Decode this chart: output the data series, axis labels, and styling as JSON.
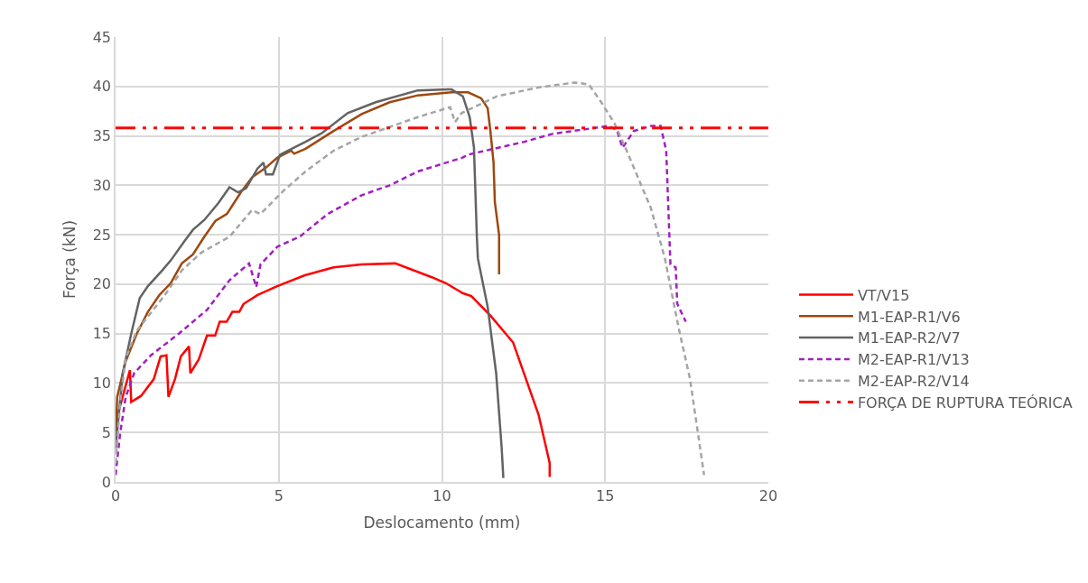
{
  "chart_data": {
    "type": "line",
    "xlabel": "Deslocamento (mm)",
    "ylabel": "Força (kN)",
    "xlim": [
      0,
      20
    ],
    "xticks": [
      0,
      5,
      10,
      15,
      20
    ],
    "ylim": [
      0,
      45
    ],
    "yticks": [
      0,
      5,
      10,
      15,
      20,
      25,
      30,
      35,
      40,
      45
    ],
    "grid": true,
    "legend": "right",
    "marker": "none",
    "series": [
      {
        "name": "VT/V15",
        "color": "#ff0000",
        "line_style": "solid",
        "x": [
          0,
          0.44,
          0.48,
          0.78,
          1.17,
          1.38,
          1.56,
          1.62,
          1.82,
          2.0,
          2.25,
          2.29,
          2.55,
          2.8,
          3.05,
          3.19,
          3.4,
          3.58,
          3.79,
          3.92,
          4.35,
          4.95,
          5.8,
          6.68,
          7.54,
          8.57,
          9.69,
          10.12,
          10.63,
          10.9,
          11.49,
          12.18,
          12.96,
          13.3,
          13.3
        ],
        "values": [
          6,
          11.3,
          8.1,
          8.7,
          10.4,
          12.7,
          12.8,
          8.6,
          10.4,
          12.7,
          13.7,
          11.0,
          12.4,
          14.8,
          14.8,
          16.2,
          16.2,
          17.2,
          17.2,
          18.0,
          18.9,
          19.8,
          20.9,
          21.7,
          22.0,
          22.1,
          20.7,
          20.1,
          19.1,
          18.8,
          16.8,
          14.1,
          6.8,
          1.9,
          0.5
        ]
      },
      {
        "name": "M1-EAP-R1/V6",
        "color": "#9e480e",
        "line_style": "solid",
        "x": [
          0,
          0.05,
          0.31,
          0.65,
          0.99,
          1.34,
          1.69,
          2.03,
          2.37,
          2.72,
          3.06,
          3.41,
          3.84,
          4.18,
          4.61,
          4.96,
          5.38,
          5.47,
          5.82,
          6.68,
          7.54,
          8.4,
          9.26,
          10.29,
          10.8,
          11.2,
          11.4,
          11.49,
          11.58,
          11.62,
          11.75,
          11.75
        ],
        "values": [
          4.3,
          8.6,
          12.2,
          15.0,
          17.2,
          18.9,
          20.1,
          22.1,
          23.0,
          24.8,
          26.4,
          27.1,
          29.3,
          30.8,
          31.8,
          32.8,
          33.5,
          33.2,
          33.7,
          35.5,
          37.2,
          38.4,
          39.1,
          39.4,
          39.4,
          38.8,
          37.8,
          35.3,
          32.3,
          28.3,
          25.0,
          21.0
        ]
      },
      {
        "name": "M1-EAP-R2/V7",
        "color": "#636363",
        "line_style": "solid",
        "x": [
          0,
          0.22,
          0.48,
          0.74,
          0.99,
          1.43,
          1.69,
          2.12,
          2.37,
          2.72,
          3.15,
          3.49,
          3.75,
          4.0,
          4.35,
          4.53,
          4.61,
          4.82,
          5.04,
          5.82,
          6.33,
          7.11,
          7.97,
          9.26,
          10.2,
          10.29,
          10.64,
          10.85,
          10.98,
          11.07,
          11.1,
          11.4,
          11.66,
          11.83,
          11.88
        ],
        "values": [
          3.4,
          11.0,
          15.0,
          18.6,
          19.8,
          21.4,
          22.4,
          24.4,
          25.5,
          26.5,
          28.2,
          29.8,
          29.3,
          29.7,
          31.7,
          32.3,
          31.1,
          31.1,
          33.1,
          34.4,
          35.3,
          37.3,
          38.4,
          39.6,
          39.7,
          39.7,
          39.0,
          36.9,
          33.8,
          24.7,
          22.6,
          17.7,
          11.0,
          3.4,
          0.4
        ]
      },
      {
        "name": "M2-EAP-R1/V13",
        "color": "#a020c0",
        "line_style": "dashed",
        "x": [
          0,
          0.14,
          0.31,
          0.57,
          1.08,
          1.94,
          2.8,
          3.49,
          4.09,
          4.31,
          4.44,
          4.96,
          5.64,
          6.5,
          7.54,
          8.4,
          9.26,
          10.63,
          10.8,
          12.52,
          13.38,
          14.24,
          15.1,
          15.36,
          15.53,
          15.88,
          16.4,
          16.7,
          16.87,
          17.0,
          17.16,
          17.21,
          17.47
        ],
        "values": [
          0.7,
          4.9,
          8.6,
          11.0,
          12.8,
          15.0,
          17.4,
          20.4,
          22.1,
          19.7,
          22.0,
          23.8,
          24.8,
          27.1,
          29.0,
          30.0,
          31.4,
          32.8,
          33.1,
          34.4,
          35.2,
          35.6,
          36.0,
          35.6,
          33.8,
          35.5,
          36.0,
          36.0,
          33.5,
          22.0,
          21.7,
          18.0,
          16.2
        ]
      },
      {
        "name": "M2-EAP-R2/V14",
        "color": "#a5a5a5",
        "line_style": "dashed",
        "x": [
          0,
          0.14,
          0.31,
          0.65,
          1.08,
          1.51,
          2.03,
          2.63,
          3.49,
          4.18,
          4.44,
          5.13,
          5.82,
          6.68,
          7.54,
          8.4,
          9.26,
          10.25,
          10.4,
          10.6,
          11.68,
          12.97,
          14.07,
          14.5,
          14.88,
          15.28,
          15.62,
          16.4,
          16.83,
          17.25,
          17.6,
          18.03
        ],
        "values": [
          1.9,
          8.0,
          12.5,
          15.3,
          17.1,
          18.9,
          21.4,
          23.2,
          24.8,
          27.5,
          27.1,
          29.4,
          31.4,
          33.5,
          34.9,
          35.9,
          36.9,
          37.9,
          36.4,
          37.3,
          39.0,
          39.9,
          40.4,
          40.2,
          38.4,
          36.3,
          33.8,
          27.7,
          22.6,
          15.6,
          10.4,
          0.7
        ]
      }
    ],
    "ref_lines": [
      {
        "axis": "y",
        "value": 35.8,
        "label": "FORÇA DE RUPTURA TEÓRICA",
        "color": "#ff0000",
        "line_style": "dashdotdot"
      }
    ]
  }
}
